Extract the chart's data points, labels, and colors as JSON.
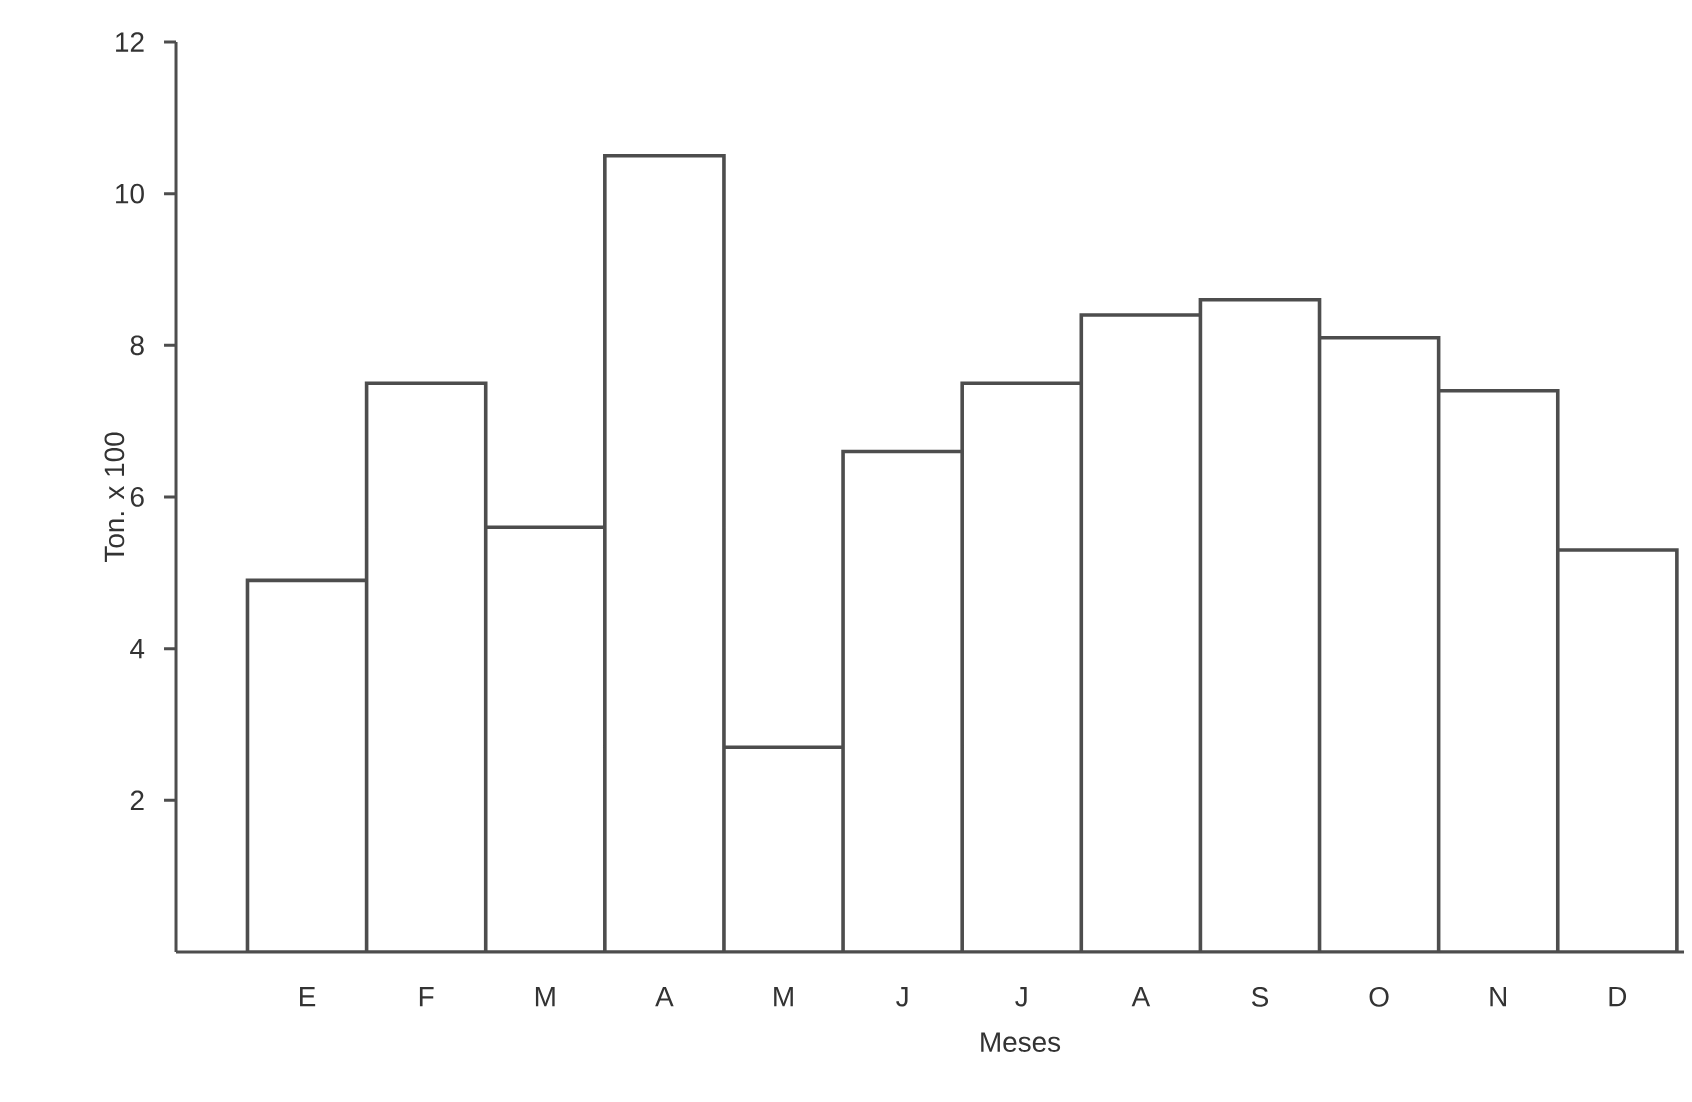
{
  "chart_data": {
    "type": "bar",
    "xlabel": "Meses",
    "ylabel": "Ton. x 100",
    "categories": [
      "E",
      "F",
      "M",
      "A",
      "M",
      "J",
      "J",
      "A",
      "S",
      "O",
      "N",
      "D"
    ],
    "values": [
      4.9,
      7.5,
      5.6,
      10.5,
      2.7,
      6.6,
      7.5,
      8.4,
      8.6,
      8.1,
      7.4,
      5.3
    ],
    "color": "#ffffff",
    "ylim": [
      0,
      12
    ],
    "yticks": [
      2,
      4,
      6,
      8,
      10,
      12
    ],
    "grid": false
  }
}
